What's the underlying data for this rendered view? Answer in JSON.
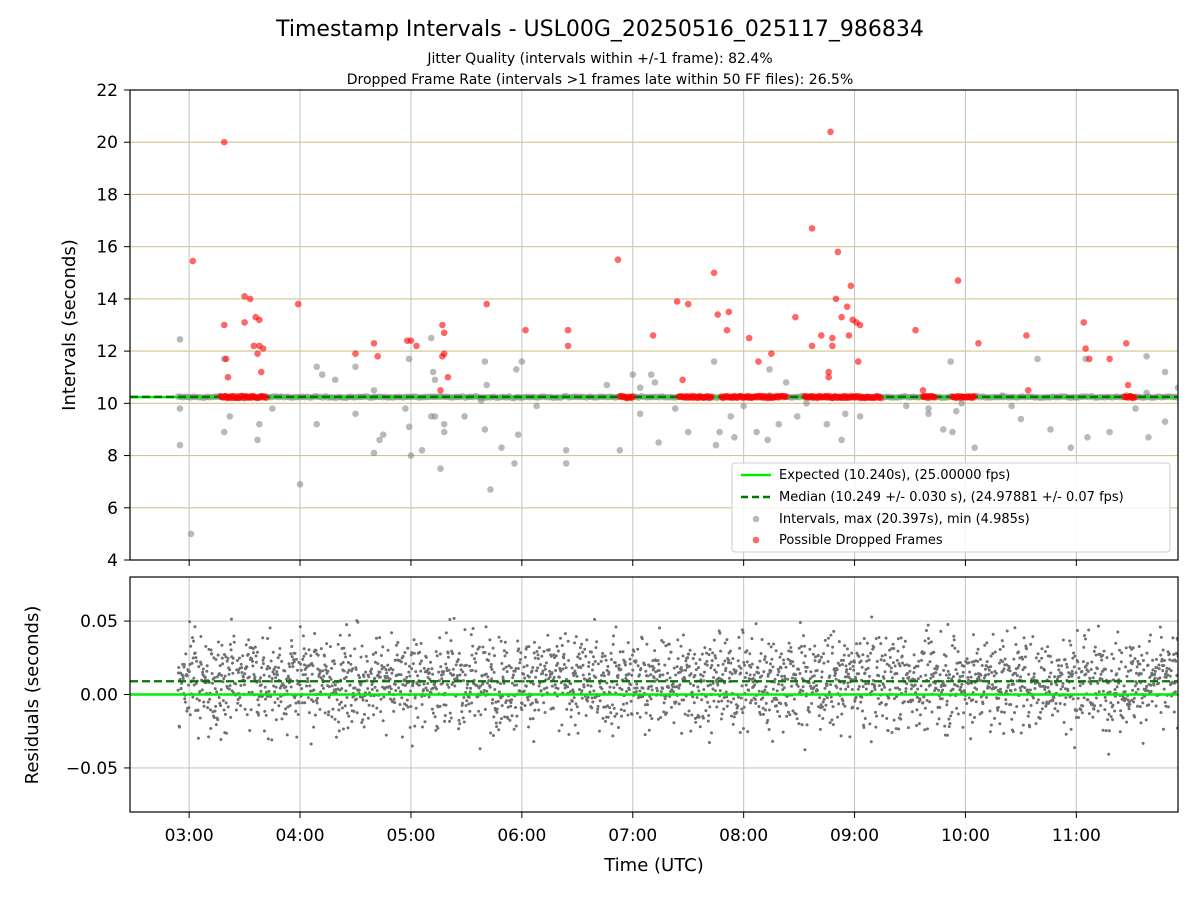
{
  "title": "Timestamp Intervals - USL00G_20250516_025117_986834",
  "subtitle_1": "Jitter Quality (intervals within +/-1 frame): 82.4%",
  "subtitle_2": "Dropped Frame Rate (intervals >1 frames late within 50 FF files): 26.5%",
  "colors": {
    "expected": "#00ee00",
    "median": "#007700",
    "intervals": "#808080",
    "dropped": "#ff0000",
    "hgrid": "#d4c48a",
    "vgrid": "#c8c8c8",
    "residuals": "#707070"
  },
  "chart_data": [
    {
      "type": "scatter",
      "id": "top",
      "xlabel": "",
      "ylabel": "Intervals (seconds)",
      "xlim": [
        "02:28",
        "11:55"
      ],
      "ylim": [
        4,
        22
      ],
      "y_ticks": [
        4,
        6,
        8,
        10,
        12,
        14,
        16,
        18,
        20,
        22
      ],
      "x_ticks": [
        "03:00",
        "04:00",
        "05:00",
        "06:00",
        "07:00",
        "08:00",
        "09:00",
        "10:00",
        "11:00"
      ],
      "grid": true,
      "legend_position": "lower right",
      "expected": 10.24,
      "median": 10.249,
      "series": [
        {
          "name": "Expected (10.240s), (25.00000 fps)",
          "kind": "line",
          "y": 10.24
        },
        {
          "name": "Median (10.249 +/- 0.030 s), (24.97881 +/- 0.07 fps)",
          "kind": "dashed-line",
          "y": 10.249
        },
        {
          "name": "Intervals, max (20.397s), min (4.985s)",
          "kind": "scatter",
          "max": 20.397,
          "min": 4.985,
          "outliers": [
            [
              "02:55",
              12.45
            ],
            [
              "02:55",
              9.8
            ],
            [
              "02:55",
              8.4
            ],
            [
              "03:01",
              5.0
            ],
            [
              "03:19",
              8.9
            ],
            [
              "03:22",
              9.5
            ],
            [
              "03:19",
              11.7
            ],
            [
              "03:37",
              8.6
            ],
            [
              "03:38",
              9.2
            ],
            [
              "03:45",
              9.8
            ],
            [
              "04:00",
              6.9
            ],
            [
              "04:09",
              9.2
            ],
            [
              "04:09",
              11.4
            ],
            [
              "04:12",
              11.1
            ],
            [
              "04:19",
              10.9
            ],
            [
              "04:30",
              11.4
            ],
            [
              "04:30",
              9.6
            ],
            [
              "04:40",
              10.5
            ],
            [
              "04:45",
              8.8
            ],
            [
              "04:57",
              9.8
            ],
            [
              "04:40",
              8.1
            ],
            [
              "04:43",
              8.6
            ],
            [
              "04:59",
              11.7
            ],
            [
              "04:59",
              9.1
            ],
            [
              "05:00",
              8.0
            ],
            [
              "05:06",
              8.2
            ],
            [
              "05:11",
              9.5
            ],
            [
              "05:13",
              10.9
            ],
            [
              "05:12",
              11.2
            ],
            [
              "05:13",
              9.5
            ],
            [
              "05:11",
              12.5
            ],
            [
              "05:16",
              7.5
            ],
            [
              "05:18",
              9.2
            ],
            [
              "05:18",
              8.9
            ],
            [
              "05:29",
              9.5
            ],
            [
              "05:38",
              10.1
            ],
            [
              "05:40",
              9.0
            ],
            [
              "05:41",
              10.7
            ],
            [
              "05:40",
              11.6
            ],
            [
              "05:43",
              6.7
            ],
            [
              "05:49",
              8.3
            ],
            [
              "05:56",
              7.7
            ],
            [
              "05:57",
              11.3
            ],
            [
              "05:58",
              8.8
            ],
            [
              "06:00",
              11.6
            ],
            [
              "06:08",
              9.9
            ],
            [
              "06:24",
              8.2
            ],
            [
              "06:24",
              7.7
            ],
            [
              "06:46",
              10.7
            ],
            [
              "06:53",
              8.2
            ],
            [
              "07:00",
              11.1
            ],
            [
              "07:04",
              10.6
            ],
            [
              "07:04",
              9.6
            ],
            [
              "07:14",
              8.5
            ],
            [
              "07:10",
              11.1
            ],
            [
              "07:12",
              10.8
            ],
            [
              "07:23",
              9.8
            ],
            [
              "07:30",
              8.9
            ],
            [
              "07:45",
              8.4
            ],
            [
              "07:47",
              8.9
            ],
            [
              "07:44",
              11.6
            ],
            [
              "07:53",
              9.5
            ],
            [
              "07:55",
              8.7
            ],
            [
              "08:00",
              9.9
            ],
            [
              "08:07",
              8.9
            ],
            [
              "08:13",
              8.6
            ],
            [
              "08:14",
              11.3
            ],
            [
              "08:14",
              10.3
            ],
            [
              "08:19",
              9.2
            ],
            [
              "08:23",
              10.8
            ],
            [
              "08:29",
              9.5
            ],
            [
              "08:34",
              10.0
            ],
            [
              "08:45",
              9.2
            ],
            [
              "08:53",
              8.6
            ],
            [
              "08:55",
              9.6
            ],
            [
              "09:03",
              9.5
            ],
            [
              "09:28",
              9.9
            ],
            [
              "09:40",
              9.8
            ],
            [
              "09:40",
              9.6
            ],
            [
              "09:48",
              9.0
            ],
            [
              "09:52",
              11.6
            ],
            [
              "09:53",
              8.9
            ],
            [
              "09:55",
              9.7
            ],
            [
              "09:58",
              10.0
            ],
            [
              "10:05",
              8.3
            ],
            [
              "10:20",
              10.3
            ],
            [
              "10:25",
              9.9
            ],
            [
              "10:30",
              9.4
            ],
            [
              "10:39",
              11.7
            ],
            [
              "10:46",
              9.0
            ],
            [
              "10:57",
              8.3
            ],
            [
              "11:05",
              11.7
            ],
            [
              "11:06",
              8.7
            ],
            [
              "11:18",
              8.9
            ],
            [
              "11:27",
              10.3
            ],
            [
              "11:32",
              9.8
            ],
            [
              "11:38",
              10.4
            ],
            [
              "11:39",
              8.7
            ],
            [
              "11:38",
              11.8
            ],
            [
              "11:48",
              9.3
            ],
            [
              "11:48",
              11.2
            ],
            [
              "11:55",
              10.6
            ]
          ]
        },
        {
          "name": "Possible Dropped Frames",
          "kind": "scatter",
          "points": [
            [
              "03:02",
              15.45
            ],
            [
              "03:19",
              20.0
            ],
            [
              "03:19",
              13.0
            ],
            [
              "03:20",
              11.7
            ],
            [
              "03:21",
              11.0
            ],
            [
              "03:30",
              14.1
            ],
            [
              "03:33",
              14.0
            ],
            [
              "03:30",
              13.1
            ],
            [
              "03:36",
              13.3
            ],
            [
              "03:38",
              13.2
            ],
            [
              "03:38",
              12.2
            ],
            [
              "03:35",
              12.2
            ],
            [
              "03:37",
              11.9
            ],
            [
              "03:39",
              11.2
            ],
            [
              "03:40",
              12.1
            ],
            [
              "03:59",
              13.8
            ],
            [
              "04:30",
              11.9
            ],
            [
              "04:40",
              12.3
            ],
            [
              "04:42",
              11.8
            ],
            [
              "04:58",
              12.4
            ],
            [
              "05:00",
              12.4
            ],
            [
              "05:03",
              12.2
            ],
            [
              "05:17",
              13.0
            ],
            [
              "05:18",
              12.7
            ],
            [
              "05:17",
              11.8
            ],
            [
              "05:18",
              11.9
            ],
            [
              "05:16",
              10.5
            ],
            [
              "05:20",
              11.0
            ],
            [
              "05:41",
              13.8
            ],
            [
              "06:02",
              12.8
            ],
            [
              "06:25",
              12.8
            ],
            [
              "06:25",
              12.2
            ],
            [
              "06:52",
              15.5
            ],
            [
              "07:11",
              12.6
            ],
            [
              "07:24",
              13.9
            ],
            [
              "07:27",
              10.9
            ],
            [
              "07:30",
              13.8
            ],
            [
              "07:44",
              15.0
            ],
            [
              "07:46",
              13.4
            ],
            [
              "07:52",
              13.5
            ],
            [
              "07:51",
              12.8
            ],
            [
              "08:03",
              12.5
            ],
            [
              "08:08",
              11.6
            ],
            [
              "08:15",
              11.9
            ],
            [
              "08:28",
              13.3
            ],
            [
              "08:37",
              12.2
            ],
            [
              "08:37",
              16.7
            ],
            [
              "08:42",
              12.6
            ],
            [
              "08:47",
              20.4
            ],
            [
              "08:48",
              12.5
            ],
            [
              "08:48",
              12.2
            ],
            [
              "08:46",
              11.2
            ],
            [
              "08:46",
              11.0
            ],
            [
              "08:50",
              14.0
            ],
            [
              "08:51",
              15.8
            ],
            [
              "08:53",
              13.3
            ],
            [
              "08:56",
              13.7
            ],
            [
              "08:58",
              14.5
            ],
            [
              "08:59",
              13.2
            ],
            [
              "09:01",
              13.1
            ],
            [
              "09:03",
              13.0
            ],
            [
              "09:02",
              11.6
            ],
            [
              "08:57",
              12.6
            ],
            [
              "09:33",
              12.8
            ],
            [
              "09:37",
              10.5
            ],
            [
              "09:56",
              14.7
            ],
            [
              "10:07",
              12.3
            ],
            [
              "10:33",
              12.6
            ],
            [
              "10:34",
              10.5
            ],
            [
              "11:04",
              13.1
            ],
            [
              "11:07",
              11.7
            ],
            [
              "11:05",
              12.1
            ],
            [
              "11:18",
              11.7
            ],
            [
              "11:27",
              12.3
            ],
            [
              "11:28",
              10.7
            ]
          ],
          "dense_clusters": [
            [
              "03:17",
              "03:42"
            ],
            [
              "06:53",
              "07:00"
            ],
            [
              "07:25",
              "07:43"
            ],
            [
              "07:48",
              "08:23"
            ],
            [
              "08:33",
              "09:15"
            ],
            [
              "09:37",
              "09:44"
            ],
            [
              "09:53",
              "10:05"
            ],
            [
              "11:26",
              "11:32"
            ]
          ]
        }
      ]
    },
    {
      "type": "scatter",
      "id": "bottom",
      "xlabel": "Time (UTC)",
      "ylabel": "Residuals (seconds)",
      "xlim": [
        "02:28",
        "11:55"
      ],
      "ylim": [
        -0.08,
        0.08
      ],
      "y_ticks": [
        -0.05,
        0.0,
        0.05
      ],
      "y_tick_labels": [
        "−0.05",
        "0.00",
        "0.05"
      ],
      "x_ticks": [
        "03:00",
        "04:00",
        "05:00",
        "06:00",
        "07:00",
        "08:00",
        "09:00",
        "10:00",
        "11:00"
      ],
      "grid": true,
      "expected_residual": 0.0,
      "median_residual": 0.009,
      "residual_range": [
        -0.078,
        0.078
      ],
      "data_start": "02:54"
    }
  ]
}
